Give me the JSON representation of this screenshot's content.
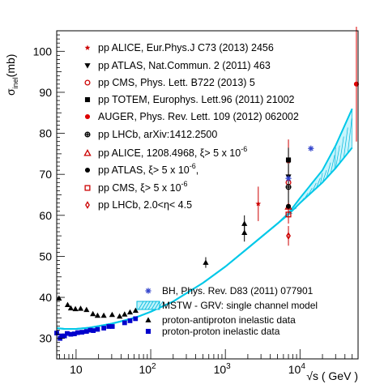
{
  "chart_data": {
    "type": "scatter",
    "x_scale": "log",
    "xlim": [
      5.5,
      60000
    ],
    "ylim": [
      25,
      105
    ],
    "xlabel": "√s ( GeV )",
    "ylabel_main": "σ",
    "ylabel_sub": "inel",
    "ylabel_unit": "(mb)",
    "x_ticks": [
      {
        "value": 10,
        "label": "10"
      },
      {
        "value": 100,
        "label": "10",
        "sup": "2"
      },
      {
        "value": 1000,
        "label": "10",
        "sup": "3"
      },
      {
        "value": 10000,
        "label": "10",
        "sup": "4"
      }
    ],
    "y_ticks": [
      30,
      40,
      50,
      60,
      70,
      80,
      90,
      100
    ],
    "legend_top": [
      {
        "marker": "star",
        "color": "#cc0000",
        "text": "pp ALICE, Eur.Phys.J C73 (2013) 2456"
      },
      {
        "marker": "triangle-down",
        "color": "#000000",
        "text": "pp ATLAS, Nat.Commun. 2 (2011) 463"
      },
      {
        "marker": "circle-open",
        "color": "#cc0000",
        "text": "pp CMS, Phys. Lett. B722 (2013) 5"
      },
      {
        "marker": "square",
        "color": "#000000",
        "text": "pp TOTEM, Europhys. Lett.96 (2011) 21002"
      },
      {
        "marker": "circle",
        "color": "#dd0000",
        "text": "AUGER, Phys. Rev. Lett. 109 (2012) 062002"
      },
      {
        "marker": "cross-circle",
        "color": "#000000",
        "text": "pp LHCb, arXiv:1412.2500"
      },
      {
        "marker": "triangle-open",
        "color": "#cc0000",
        "text": "pp ALICE, 1208.4968,    ξ> 5 x 10",
        "sup": "-6"
      },
      {
        "marker": "circle",
        "color": "#000000",
        "text": "pp ATLAS,    ξ> 5 x 10",
        "sup": "-6",
        "tail": ","
      },
      {
        "marker": "square-open",
        "color": "#cc0000",
        "text": "pp CMS,     ξ> 5 x 10",
        "sup": "-6"
      },
      {
        "marker": "diamond-open",
        "color": "#cc0000",
        "text": "pp LHCb, 2.0<η< 4.5"
      }
    ],
    "legend_bottom": [
      {
        "marker": "asterisk",
        "color": "#3344cc",
        "text": "BH, Phys. Rev. D83 (2011) 077901"
      },
      {
        "marker": "band",
        "color": "#00bbdd",
        "text": "MSTW - GRV: single channel model"
      },
      {
        "marker": "triangle",
        "color": "#000000",
        "text": "proton-antiproton inelastic data"
      },
      {
        "marker": "square",
        "color": "#0000cc",
        "text": "proton-proton inelastic data"
      }
    ],
    "band": {
      "name": "MSTW - GRV: single channel model",
      "color": "#00c8e8",
      "x": [
        5.5,
        7,
        10,
        15,
        20,
        30,
        50,
        70,
        100,
        200,
        500,
        1000,
        2000,
        5000,
        7000,
        10000,
        20000,
        30000,
        50000
      ],
      "lower": [
        32.5,
        32.3,
        32.3,
        32.6,
        33.0,
        33.6,
        34.6,
        35.4,
        36.5,
        39.0,
        43.5,
        47.5,
        52.0,
        58.0,
        60.2,
        63.0,
        68.0,
        71.5,
        76.5
      ],
      "upper": [
        32.5,
        32.3,
        32.3,
        32.6,
        33.0,
        33.6,
        34.6,
        35.4,
        36.5,
        39.0,
        43.5,
        47.5,
        52.0,
        58.0,
        60.5,
        64.2,
        71.0,
        77.0,
        86.0
      ]
    },
    "series": [
      {
        "name": "proton-antiproton inelastic data",
        "marker": "triangle",
        "color": "#000000",
        "points": [
          {
            "x": 5.9,
            "y": 39.8
          },
          {
            "x": 7.7,
            "y": 38.2
          },
          {
            "x": 8.5,
            "y": 37.4
          },
          {
            "x": 9.8,
            "y": 37.2
          },
          {
            "x": 11.5,
            "y": 37.3
          },
          {
            "x": 13.8,
            "y": 37.0
          },
          {
            "x": 16.8,
            "y": 36.0
          },
          {
            "x": 19.4,
            "y": 35.6
          },
          {
            "x": 23.5,
            "y": 35.6
          },
          {
            "x": 30.4,
            "y": 35.8
          },
          {
            "x": 38.3,
            "y": 35.4
          },
          {
            "x": 44.7,
            "y": 35.9
          },
          {
            "x": 52.8,
            "y": 36.4
          },
          {
            "x": 62.7,
            "y": 36.8
          },
          {
            "x": 546,
            "y": 48.5,
            "err": 1.3
          },
          {
            "x": 1800,
            "y": 55.8,
            "err": 2.2
          },
          {
            "x": 1800,
            "y": 58.0,
            "err": 2.0
          }
        ]
      },
      {
        "name": "proton-proton inelastic data",
        "marker": "square",
        "color": "#0000cc",
        "points": [
          {
            "x": 5.5,
            "y": 31.3
          },
          {
            "x": 6.1,
            "y": 30.0
          },
          {
            "x": 6.4,
            "y": 30.6
          },
          {
            "x": 7.0,
            "y": 30.6
          },
          {
            "x": 7.6,
            "y": 31.2
          },
          {
            "x": 8.5,
            "y": 31.0
          },
          {
            "x": 9.5,
            "y": 31.1
          },
          {
            "x": 10.5,
            "y": 31.4
          },
          {
            "x": 12.0,
            "y": 31.5
          },
          {
            "x": 13.8,
            "y": 31.7
          },
          {
            "x": 15.5,
            "y": 32.0
          },
          {
            "x": 17.0,
            "y": 31.9
          },
          {
            "x": 19.4,
            "y": 32.2
          },
          {
            "x": 23.5,
            "y": 32.5
          },
          {
            "x": 27.4,
            "y": 32.9
          },
          {
            "x": 30.6,
            "y": 32.9
          },
          {
            "x": 44.7,
            "y": 33.8
          },
          {
            "x": 52.8,
            "y": 34.3
          },
          {
            "x": 62.5,
            "y": 34.8
          }
        ]
      },
      {
        "name": "pp ALICE, Eur.Phys.J C73 (2013) 2456",
        "marker": "star",
        "color": "#cc0000",
        "points": [
          {
            "x": 2760,
            "y": 62.8,
            "err": 4.2
          },
          {
            "x": 7000,
            "y": 73.2,
            "err": 5.3
          }
        ]
      },
      {
        "name": "pp ATLAS, Nat.Commun. 2 (2011) 463",
        "marker": "triangle-down",
        "color": "#000000",
        "points": [
          {
            "x": 7000,
            "y": 69.4,
            "err": 6.9
          }
        ]
      },
      {
        "name": "pp CMS, Phys. Lett. B722 (2013) 5",
        "marker": "circle-open",
        "color": "#cc0000",
        "points": [
          {
            "x": 7000,
            "y": 68.0,
            "err": 2.5
          }
        ]
      },
      {
        "name": "pp TOTEM, Europhys. Lett.96 (2011) 21002",
        "marker": "square",
        "color": "#000000",
        "points": [
          {
            "x": 7000,
            "y": 73.5,
            "err": 3.0
          }
        ]
      },
      {
        "name": "AUGER, Phys. Rev. Lett. 109 (2012) 062002",
        "marker": "circle",
        "color": "#dd0000",
        "points": [
          {
            "x": 57000,
            "y": 92.0,
            "err": 14
          }
        ]
      },
      {
        "name": "pp LHCb, arXiv:1412.2500",
        "marker": "cross-circle",
        "color": "#000000",
        "points": [
          {
            "x": 7000,
            "y": 66.9,
            "err": 5.3
          }
        ]
      },
      {
        "name": "pp ALICE, 1208.4968, ξ> 5 x 10-6",
        "marker": "triangle-open",
        "color": "#cc0000",
        "points": [
          {
            "x": 7000,
            "y": 62.1,
            "err": 1.6
          }
        ]
      },
      {
        "name": "pp ATLAS, ξ> 5 x 10-6,",
        "marker": "circle",
        "color": "#000000",
        "points": [
          {
            "x": 7000,
            "y": 62.2,
            "err": 1.6
          }
        ]
      },
      {
        "name": "pp CMS, ξ> 5 x 10-6",
        "marker": "square-open",
        "color": "#cc0000",
        "points": [
          {
            "x": 7000,
            "y": 60.2,
            "err": 2.2
          }
        ]
      },
      {
        "name": "pp LHCb, 2.0<η< 4.5",
        "marker": "diamond-open",
        "color": "#cc0000",
        "points": [
          {
            "x": 7000,
            "y": 55.0,
            "err": 2.4
          }
        ]
      },
      {
        "name": "BH, Phys. Rev. D83 (2011) 077901",
        "marker": "asterisk",
        "color": "#3344cc",
        "points": [
          {
            "x": 7000,
            "y": 69.0
          },
          {
            "x": 14000,
            "y": 76.3
          }
        ]
      }
    ]
  }
}
